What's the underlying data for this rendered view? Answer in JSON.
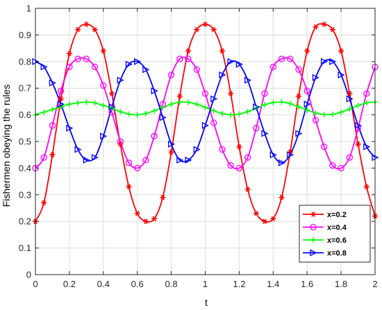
{
  "chart_data": {
    "type": "line",
    "title": "",
    "xlabel": "t",
    "ylabel": "Fishermen obeying the rules",
    "xlim": [
      0,
      2
    ],
    "ylim": [
      0,
      1
    ],
    "xticks": [
      0,
      0.2,
      0.4,
      0.6,
      0.8,
      1,
      1.2,
      1.4,
      1.6,
      1.8,
      2
    ],
    "yticks": [
      0,
      0.1,
      0.2,
      0.3,
      0.4,
      0.5,
      0.6,
      0.7,
      0.8,
      0.9,
      1
    ],
    "xtick_labels": [
      "0",
      "0.2",
      "0.4",
      "0.6",
      "0.8",
      "1",
      "1.2",
      "1.4",
      "1.6",
      "1.8",
      "2"
    ],
    "ytick_labels": [
      "0",
      "0.1",
      "0.2",
      "0.3",
      "0.4",
      "0.5",
      "0.6",
      "0.7",
      "0.8",
      "0.9",
      "1"
    ],
    "grid": true,
    "legend_position": "lower-right",
    "x": [
      0,
      0.05,
      0.1,
      0.15,
      0.2,
      0.25,
      0.3,
      0.35,
      0.4,
      0.45,
      0.5,
      0.55,
      0.6,
      0.65,
      0.7,
      0.75,
      0.8,
      0.85,
      0.9,
      0.95,
      1.0,
      1.05,
      1.1,
      1.15,
      1.2,
      1.25,
      1.3,
      1.35,
      1.4,
      1.45,
      1.5,
      1.55,
      1.6,
      1.65,
      1.7,
      1.75,
      1.8,
      1.85,
      1.9,
      1.95,
      2.0
    ],
    "series": [
      {
        "name": "x=0.2",
        "color": "#ff0000",
        "marker": "hexstar",
        "values": [
          0.2,
          0.27,
          0.45,
          0.66,
          0.83,
          0.92,
          0.94,
          0.92,
          0.84,
          0.68,
          0.49,
          0.33,
          0.23,
          0.2,
          0.21,
          0.29,
          0.46,
          0.67,
          0.84,
          0.92,
          0.94,
          0.92,
          0.84,
          0.68,
          0.48,
          0.32,
          0.23,
          0.2,
          0.21,
          0.29,
          0.46,
          0.67,
          0.84,
          0.93,
          0.94,
          0.92,
          0.84,
          0.68,
          0.49,
          0.33,
          0.22
        ]
      },
      {
        "name": "x=0.4",
        "color": "#ff00ff",
        "marker": "circle",
        "values": [
          0.4,
          0.44,
          0.56,
          0.69,
          0.78,
          0.81,
          0.81,
          0.78,
          0.71,
          0.61,
          0.5,
          0.42,
          0.4,
          0.43,
          0.52,
          0.64,
          0.75,
          0.81,
          0.81,
          0.77,
          0.68,
          0.57,
          0.47,
          0.41,
          0.4,
          0.44,
          0.55,
          0.68,
          0.78,
          0.81,
          0.81,
          0.77,
          0.69,
          0.58,
          0.48,
          0.41,
          0.4,
          0.44,
          0.55,
          0.68,
          0.78
        ]
      },
      {
        "name": "x=0.6",
        "color": "#00ff00",
        "marker": "plus",
        "values": [
          0.6,
          0.61,
          0.62,
          0.63,
          0.64,
          0.645,
          0.648,
          0.645,
          0.635,
          0.625,
          0.612,
          0.603,
          0.6,
          0.605,
          0.615,
          0.628,
          0.64,
          0.648,
          0.647,
          0.64,
          0.628,
          0.615,
          0.605,
          0.6,
          0.603,
          0.612,
          0.625,
          0.638,
          0.646,
          0.648,
          0.642,
          0.63,
          0.618,
          0.607,
          0.601,
          0.602,
          0.61,
          0.622,
          0.635,
          0.645,
          0.648
        ]
      },
      {
        "name": "x=0.8",
        "color": "#0000ff",
        "marker": "triangle-right",
        "values": [
          0.8,
          0.78,
          0.72,
          0.64,
          0.55,
          0.47,
          0.43,
          0.44,
          0.52,
          0.63,
          0.73,
          0.79,
          0.8,
          0.77,
          0.69,
          0.59,
          0.49,
          0.43,
          0.43,
          0.47,
          0.56,
          0.66,
          0.75,
          0.8,
          0.79,
          0.73,
          0.63,
          0.53,
          0.45,
          0.42,
          0.45,
          0.53,
          0.64,
          0.74,
          0.8,
          0.8,
          0.75,
          0.66,
          0.56,
          0.48,
          0.44
        ]
      }
    ]
  }
}
